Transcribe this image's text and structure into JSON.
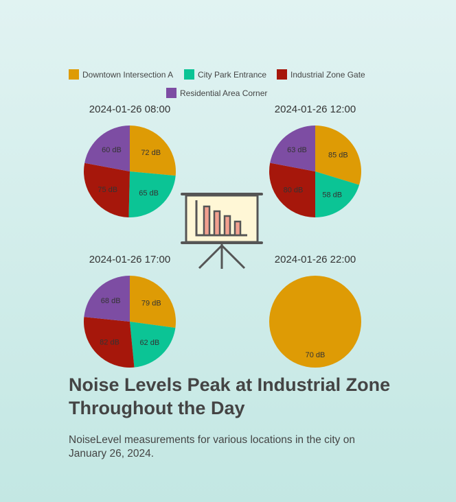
{
  "chart_data": {
    "type": "pie",
    "series": [
      {
        "name": "Downtown Intersection A",
        "color": "#de9b05"
      },
      {
        "name": "City Park Entrance",
        "color": "#0bc495"
      },
      {
        "name": "Industrial Zone Gate",
        "color": "#a6170b"
      },
      {
        "name": "Residential Area Corner",
        "color": "#7d4da3"
      }
    ],
    "pies": [
      {
        "title": "2024-01-26 08:00",
        "values": [
          72,
          65,
          75,
          60
        ],
        "labels": [
          "72 dB",
          "65 dB",
          "75 dB",
          "60 dB"
        ]
      },
      {
        "title": "2024-01-26 12:00",
        "values": [
          85,
          58,
          80,
          63
        ],
        "labels": [
          "85 dB",
          "58 dB",
          "80 dB",
          "63 dB"
        ]
      },
      {
        "title": "2024-01-26 17:00",
        "values": [
          79,
          62,
          82,
          68
        ],
        "labels": [
          "79 dB",
          "62 dB",
          "82 dB",
          "68 dB"
        ]
      },
      {
        "title": "2024-01-26 22:00",
        "values": [
          70,
          null,
          null,
          null
        ],
        "labels": [
          "70 dB",
          "",
          "",
          ""
        ]
      }
    ],
    "legend_position": "top",
    "center_icon": "presentation-chart-icon"
  },
  "headline": "Noise Levels Peak at Industrial Zone Throughout the Day",
  "subtitle": "NoiseLevel measurements for various locations in the city on January 26, 2024."
}
